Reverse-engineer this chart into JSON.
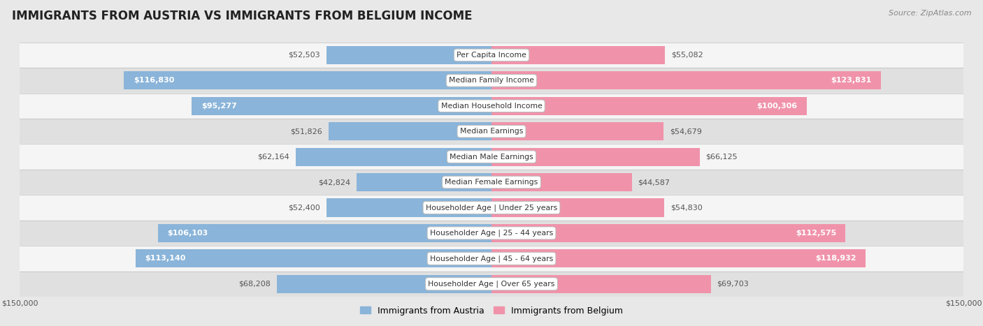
{
  "title": "IMMIGRANTS FROM AUSTRIA VS IMMIGRANTS FROM BELGIUM INCOME",
  "source": "Source: ZipAtlas.com",
  "categories": [
    "Per Capita Income",
    "Median Family Income",
    "Median Household Income",
    "Median Earnings",
    "Median Male Earnings",
    "Median Female Earnings",
    "Householder Age | Under 25 years",
    "Householder Age | 25 - 44 years",
    "Householder Age | 45 - 64 years",
    "Householder Age | Over 65 years"
  ],
  "austria_values": [
    52503,
    116830,
    95277,
    51826,
    62164,
    42824,
    52400,
    106103,
    113140,
    68208
  ],
  "belgium_values": [
    55082,
    123831,
    100306,
    54679,
    66125,
    44587,
    54830,
    112575,
    118932,
    69703
  ],
  "austria_color": "#8ab4d9",
  "belgium_color": "#f093aa",
  "austria_label": "Immigrants from Austria",
  "belgium_label": "Immigrants from Belgium",
  "max_value": 150000,
  "bar_height": 0.72,
  "fig_bg": "#e8e8e8",
  "row_bg_light": "#f5f5f5",
  "row_bg_dark": "#e0e0e0",
  "austria_threshold": 85000,
  "belgium_threshold": 85000,
  "label_fontsize": 8.0,
  "cat_fontsize": 7.8,
  "title_fontsize": 12,
  "source_fontsize": 8
}
